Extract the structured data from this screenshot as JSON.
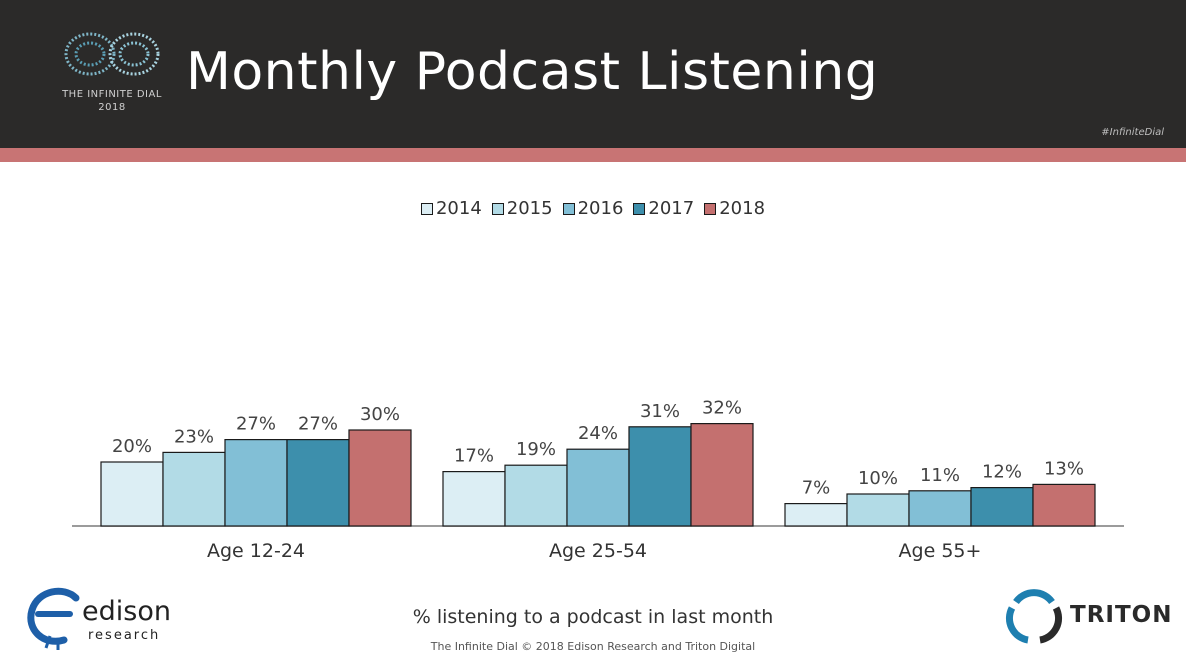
{
  "header": {
    "title": "Monthly Podcast Listening",
    "logo_line1": "THE INFINITE DIAL",
    "logo_line2": "2018",
    "hashtag": "#InfiniteDial"
  },
  "colors": {
    "header_bg": "#2b2a29",
    "accent_stripe": "#c87474"
  },
  "chart_data": {
    "type": "bar",
    "categories": [
      "Age 12-24",
      "Age 25-54",
      "Age 55+"
    ],
    "series": [
      {
        "name": "2014",
        "color": "#dceef4",
        "values": [
          20,
          17,
          7
        ],
        "labels": [
          "20%",
          "17%",
          "7%"
        ]
      },
      {
        "name": "2015",
        "color": "#b2dbe6",
        "values": [
          23,
          19,
          10
        ],
        "labels": [
          "23%",
          "19%",
          "10%"
        ]
      },
      {
        "name": "2016",
        "color": "#82bfd6",
        "values": [
          27,
          24,
          11
        ],
        "labels": [
          "27%",
          "24%",
          "11%"
        ]
      },
      {
        "name": "2017",
        "color": "#3d8fac",
        "values": [
          27,
          31,
          12
        ],
        "labels": [
          "27%",
          "31%",
          "12%"
        ]
      },
      {
        "name": "2018",
        "color": "#c4706f",
        "values": [
          30,
          32,
          13
        ],
        "labels": [
          "30%",
          "32%",
          "13%"
        ]
      }
    ],
    "ylim": [
      0,
      100
    ],
    "grid": false,
    "legend_position": "top-center",
    "xlabel": "% listening to a podcast in last month"
  },
  "footer": {
    "subtitle": "% listening to a podcast in last month",
    "note": "The Infinite Dial   © 2018 Edison Research and Triton Digital",
    "edison_name": "edison",
    "edison_sub": "research",
    "triton_name": "TRITON"
  }
}
